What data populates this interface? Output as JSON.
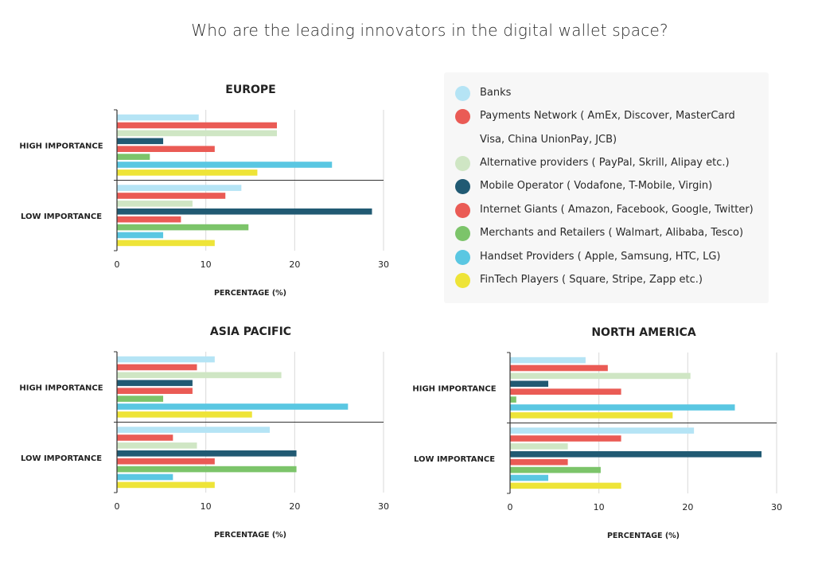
{
  "title": "Who are the leading innovators in the digital wallet space?",
  "legend": [
    {
      "label": "Banks",
      "color": "#b5e4f5"
    },
    {
      "label": "Payments Network ( AmEx, Discover, MasterCard Visa, China UnionPay, JCB)",
      "color": "#ea5b55"
    },
    {
      "label": "Alternative providers ( PayPal, Skrill, Alipay etc.)",
      "color": "#cfe6c4"
    },
    {
      "label": "Mobile Operator ( Vodafone, T-Mobile, Virgin)",
      "color": "#215a73"
    },
    {
      "label": "Internet Giants ( Amazon, Facebook, Google, Twitter)",
      "color": "#ea5b55"
    },
    {
      "label": "Merchants and Retailers ( Walmart, Alibaba, Tesco)",
      "color": "#7cc46a"
    },
    {
      "label": "Handset Providers ( Apple, Samsung, HTC, LG)",
      "color": "#5ac7e2"
    },
    {
      "label": "FinTech Players ( Square, Stripe, Zapp etc.)",
      "color": "#eee438"
    }
  ],
  "chart_data": [
    {
      "type": "bar",
      "orientation": "horizontal",
      "title": "EUROPE",
      "xlabel": "PERCENTAGE (%)",
      "xlim": [
        0,
        30
      ],
      "xticks": [
        "0",
        "10",
        "20",
        "30"
      ],
      "categories": [
        "HIGH IMPORTANCE",
        "LOW IMPORTANCE"
      ],
      "series": [
        {
          "name": "Banks",
          "values": [
            9.2,
            14
          ]
        },
        {
          "name": "Payments Network ( AmEx, Discover, MasterCard Visa, China UnionPay, JCB)",
          "values": [
            18,
            12.2
          ]
        },
        {
          "name": "Alternative providers ( PayPal, Skrill, Alipay etc.)",
          "values": [
            18,
            8.5
          ]
        },
        {
          "name": "Mobile Operator ( Vodafone, T-Mobile, Virgin)",
          "values": [
            5.2,
            28.7
          ]
        },
        {
          "name": "Internet Giants ( Amazon, Facebook, Google, Twitter)",
          "values": [
            11,
            7.2
          ]
        },
        {
          "name": "Merchants and Retailers ( Walmart, Alibaba, Tesco)",
          "values": [
            3.7,
            14.8
          ]
        },
        {
          "name": "Handset Providers ( Apple, Samsung, HTC, LG)",
          "values": [
            24.2,
            5.2
          ]
        },
        {
          "name": "FinTech Players ( Square, Stripe, Zapp etc.)",
          "values": [
            15.8,
            11
          ]
        }
      ]
    },
    {
      "type": "bar",
      "orientation": "horizontal",
      "title": "ASIA PACIFIC",
      "xlabel": "PERCENTAGE (%)",
      "xlim": [
        0,
        30
      ],
      "xticks": [
        "0",
        "10",
        "20",
        "30"
      ],
      "categories": [
        "HIGH IMPORTANCE",
        "LOW IMPORTANCE"
      ],
      "series": [
        {
          "name": "Banks",
          "values": [
            11,
            17.2
          ]
        },
        {
          "name": "Payments Network ( AmEx, Discover, MasterCard Visa, China UnionPay, JCB)",
          "values": [
            9,
            6.3
          ]
        },
        {
          "name": "Alternative providers ( PayPal, Skrill, Alipay etc.)",
          "values": [
            18.5,
            9
          ]
        },
        {
          "name": "Mobile Operator ( Vodafone, T-Mobile, Virgin)",
          "values": [
            8.5,
            20.2
          ]
        },
        {
          "name": "Internet Giants ( Amazon, Facebook, Google, Twitter)",
          "values": [
            8.5,
            11
          ]
        },
        {
          "name": "Merchants and Retailers ( Walmart, Alibaba, Tesco)",
          "values": [
            5.2,
            20.2
          ]
        },
        {
          "name": "Handset Providers ( Apple, Samsung, HTC, LG)",
          "values": [
            26,
            6.3
          ]
        },
        {
          "name": "FinTech Players ( Square, Stripe, Zapp etc.)",
          "values": [
            15.2,
            11
          ]
        }
      ]
    },
    {
      "type": "bar",
      "orientation": "horizontal",
      "title": "NORTH AMERICA",
      "xlabel": "PERCENTAGE (%)",
      "xlim": [
        0,
        30
      ],
      "xticks": [
        "0",
        "10",
        "20",
        "30"
      ],
      "categories": [
        "HIGH IMPORTANCE",
        "LOW IMPORTANCE"
      ],
      "series": [
        {
          "name": "Banks",
          "values": [
            8.5,
            20.7
          ]
        },
        {
          "name": "Payments Network ( AmEx, Discover, MasterCard Visa, China UnionPay, JCB)",
          "values": [
            11,
            12.5
          ]
        },
        {
          "name": "Alternative providers ( PayPal, Skrill, Alipay etc.)",
          "values": [
            20.3,
            6.5
          ]
        },
        {
          "name": "Mobile Operator ( Vodafone, T-Mobile, Virgin)",
          "values": [
            4.3,
            28.3
          ]
        },
        {
          "name": "Internet Giants ( Amazon, Facebook, Google, Twitter)",
          "values": [
            12.5,
            6.5
          ]
        },
        {
          "name": "Merchants and Retailers ( Walmart, Alibaba, Tesco)",
          "values": [
            0.7,
            10.2
          ]
        },
        {
          "name": "Handset Providers ( Apple, Samsung, HTC, LG)",
          "values": [
            25.3,
            4.3
          ]
        },
        {
          "name": "FinTech Players ( Square, Stripe, Zapp etc.)",
          "values": [
            18.3,
            12.5
          ]
        }
      ]
    }
  ]
}
